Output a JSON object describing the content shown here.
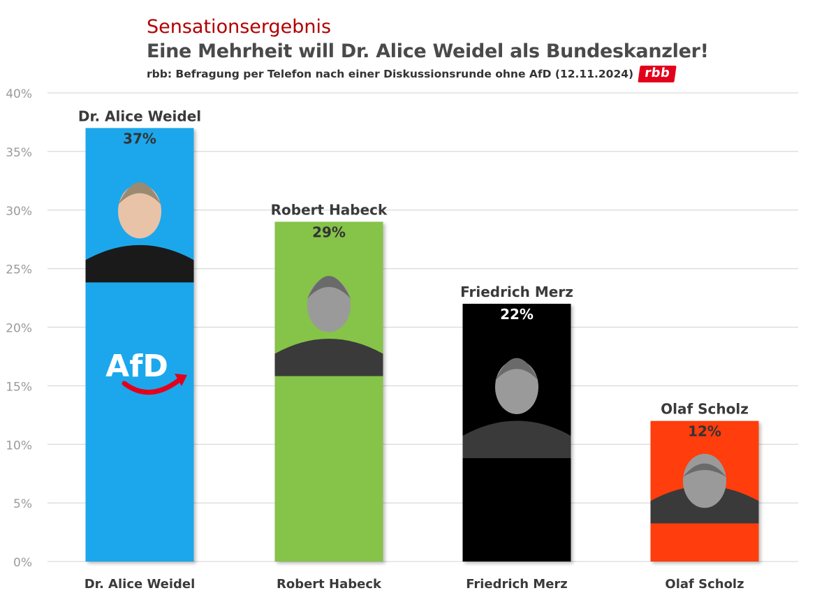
{
  "header": {
    "kicker": "Sensationsergebnis",
    "title": "Eine Mehrheit will Dr. Alice Weidel als Bundeskanzler!",
    "subtitle": "rbb: Befragung per Telefon nach einer Diskussionsrunde ohne AfD (12.11.2024)",
    "source_logo": "rbb"
  },
  "party_logo": {
    "text": "AfD"
  },
  "chart_data": {
    "type": "bar",
    "title": "Eine Mehrheit will Dr. Alice Weidel als Bundeskanzler!",
    "subtitle": "rbb: Befragung per Telefon nach einer Diskussionsrunde ohne AfD (12.11.2024)",
    "categories": [
      "Dr. Alice Weidel",
      "Robert Habeck",
      "Friedrich Merz",
      "Olaf Scholz"
    ],
    "values": [
      37,
      29,
      22,
      12
    ],
    "value_labels": [
      "37%",
      "29%",
      "22%",
      "12%"
    ],
    "colors": [
      "#1aa7ec",
      "#85c34a",
      "#000000",
      "#ff3d10"
    ],
    "ylim": [
      0,
      40
    ],
    "yticks": [
      0,
      5,
      10,
      15,
      20,
      25,
      30,
      35,
      40
    ],
    "ytick_labels": [
      "0%",
      "5%",
      "10%",
      "15%",
      "20%",
      "25%",
      "30%",
      "35%",
      "40%"
    ],
    "xlabel": "",
    "ylabel": "",
    "grid": true,
    "legend": "none"
  }
}
